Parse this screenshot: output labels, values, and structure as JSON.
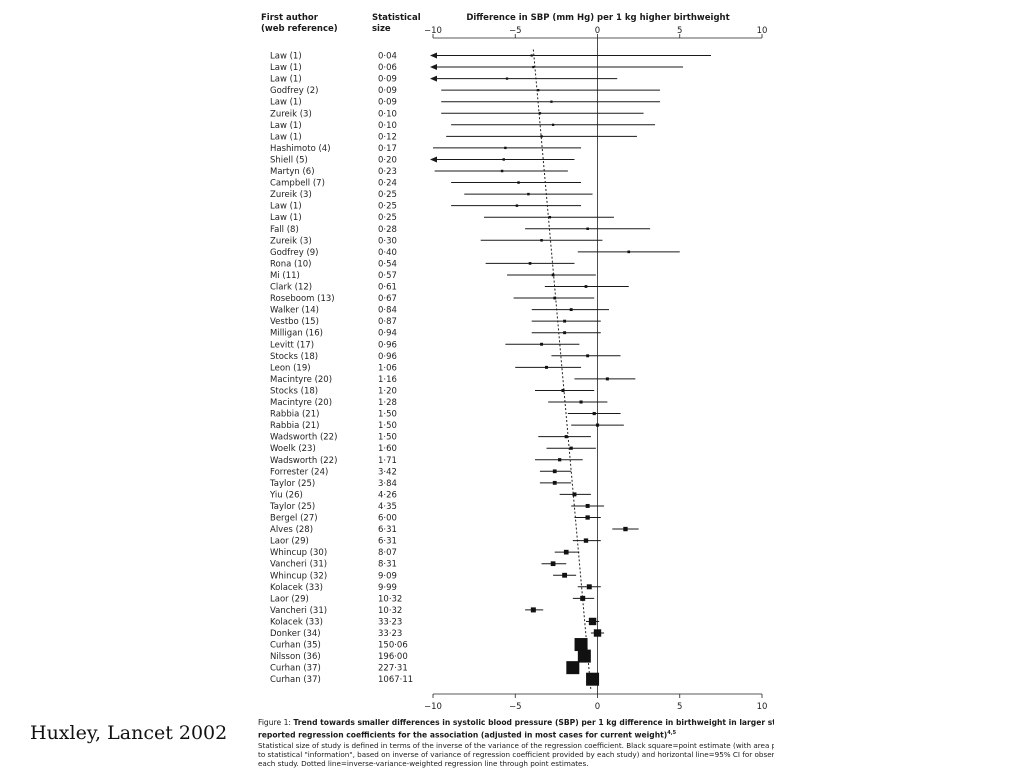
{
  "headers": {
    "author_line1": "First author",
    "author_line2": "(web reference)",
    "size_line1": "Statistical",
    "size_line2": "size",
    "axis_title": "Difference in SBP (mm Hg) per 1 kg higher birthweight"
  },
  "caption": {
    "label": "Figure 1:",
    "title": "Trend towards smaller differences in systolic blood pressure (SBP) per 1 kg difference in birthweight in larger studies tha",
    "title_cont": "reported regression coefficients for the association (adjusted in most cases for current weight)",
    "title_sup": "4,5",
    "note_1": "Statistical size of study is defined in terms of the inverse of the variance of the regression coefficient. Black square=point estimate (with area proportio",
    "note_2": "to statistical \"information\", based on inverse of variance of regression coefficient provided by each study) and horizontal line=95% CI for observed effec",
    "note_3": "each study. Dotted line=inverse-variance-weighted regression line through point estimates."
  },
  "citation": "Huxley, Lancet 2002",
  "chart_data": {
    "type": "forest",
    "axis_title": "Difference in SBP (mm Hg) per 1 kg higher birthweight",
    "xlim": [
      -10,
      10
    ],
    "xticks": [
      -10,
      -5,
      0,
      5,
      10
    ],
    "tick_labels_top": [
      "−10",
      "−5",
      "0",
      "5",
      "10"
    ],
    "tick_labels_bottom": [
      "−10",
      "−5",
      "0",
      "5",
      "10"
    ],
    "reference_line": 0,
    "regression_line": "dotted",
    "regression_line_points": [
      {
        "x": -3.9,
        "study_index": 0
      },
      {
        "x": -0.4,
        "study_index": 55
      }
    ],
    "studies": [
      {
        "author": "Law (1)",
        "size": "0·04",
        "est": -4.0,
        "lo": -10.0,
        "hi": 6.9,
        "arrow_left": true
      },
      {
        "author": "Law (1)",
        "size": "0·06",
        "est": -3.9,
        "lo": -10.0,
        "hi": 5.2,
        "arrow_left": true
      },
      {
        "author": "Law (1)",
        "size": "0·09",
        "est": -5.5,
        "lo": -10.0,
        "hi": 1.2,
        "arrow_left": true
      },
      {
        "author": "Godfrey (2)",
        "size": "0·09",
        "est": -3.6,
        "lo": -9.5,
        "hi": 3.8
      },
      {
        "author": "Law (1)",
        "size": "0·09",
        "est": -2.8,
        "lo": -9.5,
        "hi": 3.8
      },
      {
        "author": "Zureik (3)",
        "size": "0·10",
        "est": -3.5,
        "lo": -9.5,
        "hi": 2.8
      },
      {
        "author": "Law (1)",
        "size": "0·10",
        "est": -2.7,
        "lo": -8.9,
        "hi": 3.5
      },
      {
        "author": "Law (1)",
        "size": "0·12",
        "est": -3.4,
        "lo": -9.2,
        "hi": 2.4
      },
      {
        "author": "Hashimoto (4)",
        "size": "0·17",
        "est": -5.6,
        "lo": -10.0,
        "hi": -1.0
      },
      {
        "author": "Shiell (5)",
        "size": "0·20",
        "est": -5.7,
        "lo": -10.0,
        "hi": -1.4,
        "arrow_left": true
      },
      {
        "author": "Martyn (6)",
        "size": "0·23",
        "est": -5.8,
        "lo": -9.9,
        "hi": -1.8
      },
      {
        "author": "Campbell (7)",
        "size": "0·24",
        "est": -4.8,
        "lo": -8.9,
        "hi": -1.0
      },
      {
        "author": "Zureik (3)",
        "size": "0·25",
        "est": -4.2,
        "lo": -8.1,
        "hi": -0.3
      },
      {
        "author": "Law (1)",
        "size": "0·25",
        "est": -4.9,
        "lo": -8.9,
        "hi": -1.0
      },
      {
        "author": "Law (1)",
        "size": "0·25",
        "est": -2.9,
        "lo": -6.9,
        "hi": 1.0
      },
      {
        "author": "Fall (8)",
        "size": "0·28",
        "est": -0.6,
        "lo": -4.4,
        "hi": 3.2
      },
      {
        "author": "Zureik (3)",
        "size": "0·30",
        "est": -3.4,
        "lo": -7.1,
        "hi": 0.3
      },
      {
        "author": "Godfrey (9)",
        "size": "0·40",
        "est": 1.9,
        "lo": -1.2,
        "hi": 5.0
      },
      {
        "author": "Rona (10)",
        "size": "0·54",
        "est": -4.1,
        "lo": -6.8,
        "hi": -1.4
      },
      {
        "author": "Mi (11)",
        "size": "0·57",
        "est": -2.7,
        "lo": -5.5,
        "hi": -0.1
      },
      {
        "author": "Clark (12)",
        "size": "0·61",
        "est": -0.7,
        "lo": -3.2,
        "hi": 1.9
      },
      {
        "author": "Roseboom (13)",
        "size": "0·67",
        "est": -2.6,
        "lo": -5.1,
        "hi": -0.2
      },
      {
        "author": "Walker (14)",
        "size": "0·84",
        "est": -1.6,
        "lo": -4.0,
        "hi": 0.7
      },
      {
        "author": "Vestbo (15)",
        "size": "0·87",
        "est": -2.0,
        "lo": -4.0,
        "hi": 0.2
      },
      {
        "author": "Milligan (16)",
        "size": "0·94",
        "est": -2.0,
        "lo": -4.0,
        "hi": 0.2
      },
      {
        "author": "Levitt (17)",
        "size": "0·96",
        "est": -3.4,
        "lo": -5.6,
        "hi": -1.1
      },
      {
        "author": "Stocks (18)",
        "size": "0·96",
        "est": -0.6,
        "lo": -2.8,
        "hi": 1.4
      },
      {
        "author": "Leon (19)",
        "size": "1·06",
        "est": -3.1,
        "lo": -5.0,
        "hi": -1.0
      },
      {
        "author": "Macintyre (20)",
        "size": "1·16",
        "est": 0.6,
        "lo": -1.4,
        "hi": 2.3
      },
      {
        "author": "Stocks (18)",
        "size": "1·20",
        "est": -2.1,
        "lo": -3.8,
        "hi": -0.2
      },
      {
        "author": "Macintyre (20)",
        "size": "1·28",
        "est": -1.0,
        "lo": -3.0,
        "hi": 0.6
      },
      {
        "author": "Rabbia (21)",
        "size": "1·50",
        "est": -0.2,
        "lo": -1.8,
        "hi": 1.4
      },
      {
        "author": "Rabbia (21)",
        "size": "1·50",
        "est": 0.0,
        "lo": -1.6,
        "hi": 1.6
      },
      {
        "author": "Wadsworth (22)",
        "size": "1·50",
        "est": -1.9,
        "lo": -3.6,
        "hi": -0.4
      },
      {
        "author": "Woelk (23)",
        "size": "1·60",
        "est": -1.6,
        "lo": -3.1,
        "hi": -0.1
      },
      {
        "author": "Wadsworth (22)",
        "size": "1·71",
        "est": -2.3,
        "lo": -3.8,
        "hi": -0.9
      },
      {
        "author": "Forrester (24)",
        "size": "3·42",
        "est": -2.6,
        "lo": -3.5,
        "hi": -1.6
      },
      {
        "author": "Taylor (25)",
        "size": "3·84",
        "est": -2.6,
        "lo": -3.5,
        "hi": -1.6
      },
      {
        "author": "Yiu (26)",
        "size": "4·26",
        "est": -1.4,
        "lo": -2.3,
        "hi": -0.4
      },
      {
        "author": "Taylor (25)",
        "size": "4·35",
        "est": -0.6,
        "lo": -1.6,
        "hi": 0.4
      },
      {
        "author": "Bergel (27)",
        "size": "6·00",
        "est": -0.6,
        "lo": -1.4,
        "hi": 0.2
      },
      {
        "author": "Alves (28)",
        "size": "6·31",
        "est": 1.7,
        "lo": 0.9,
        "hi": 2.5
      },
      {
        "author": "Laor (29)",
        "size": "6·31",
        "est": -0.7,
        "lo": -1.5,
        "hi": 0.2
      },
      {
        "author": "Whincup (30)",
        "size": "8·07",
        "est": -1.9,
        "lo": -2.6,
        "hi": -1.1
      },
      {
        "author": "Vancheri (31)",
        "size": "8·31",
        "est": -2.7,
        "lo": -3.4,
        "hi": -1.9
      },
      {
        "author": "Whincup (32)",
        "size": "9·09",
        "est": -2.0,
        "lo": -2.7,
        "hi": -1.3
      },
      {
        "author": "Kolacek (33)",
        "size": "9·99",
        "est": -0.5,
        "lo": -1.2,
        "hi": 0.2
      },
      {
        "author": "Laor (29)",
        "size": "10·32",
        "est": -0.9,
        "lo": -1.5,
        "hi": -0.2
      },
      {
        "author": "Vancheri (31)",
        "size": "10·32",
        "est": -3.9,
        "lo": -4.4,
        "hi": -3.3
      },
      {
        "author": "Kolacek (33)",
        "size": "33·23",
        "est": -0.3,
        "lo": -0.7,
        "hi": 0.1
      },
      {
        "author": "Donker (34)",
        "size": "33·23",
        "est": 0.0,
        "lo": -0.4,
        "hi": 0.4
      },
      {
        "author": "Curhan (35)",
        "size": "150·06",
        "est": -1.0,
        "lo": -1.2,
        "hi": -0.8
      },
      {
        "author": "Nilsson (36)",
        "size": "196·00",
        "est": -0.8,
        "lo": -1.0,
        "hi": -0.6
      },
      {
        "author": "Curhan (37)",
        "size": "227·31",
        "est": -1.5,
        "lo": -1.7,
        "hi": -1.3
      },
      {
        "author": "Curhan (37)",
        "size": "1067·11",
        "est": -0.3,
        "lo": -0.4,
        "hi": -0.2
      }
    ]
  }
}
